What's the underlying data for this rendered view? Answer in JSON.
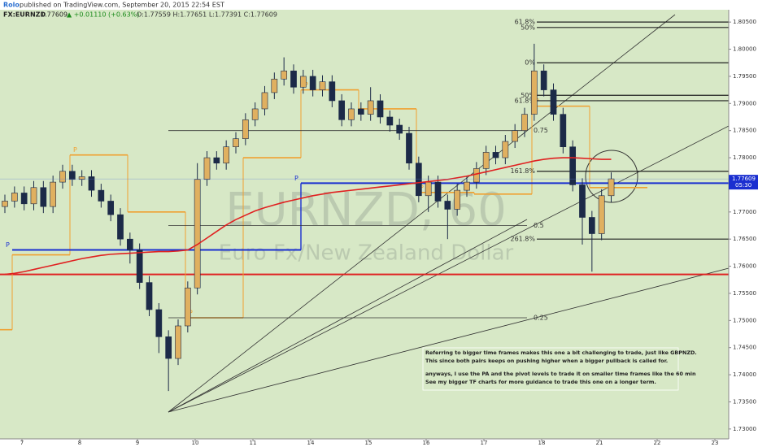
{
  "chart_data": {
    "type": "candlestick",
    "publisher": "Rolo",
    "published": "published on TradingView.com, September 20, 2015 22:54 EST",
    "symbol": "FX:EURNZD",
    "last": "1.77609",
    "change": "▲ +0.01110 (+0.63%)",
    "ohlc": "O:1.77559 H:1.77651 L:1.77391 C:1.77609",
    "watermark": "EURNZD, 60",
    "watermark_subtitle": "Euro Fx/New Zealand Dollar",
    "categories": [
      "7",
      "8",
      "9",
      "10",
      "11",
      "14",
      "15",
      "16",
      "17",
      "18",
      "21",
      "22",
      "23"
    ],
    "up_color": "#e0b060",
    "down_color": "#1c2a48",
    "open": [
      1.771,
      1.772,
      1.7735,
      1.7715,
      1.7745,
      1.771,
      1.7755,
      1.7775,
      1.776,
      1.7765,
      1.774,
      1.772,
      1.7695,
      1.765,
      1.763,
      1.757,
      1.752,
      1.747,
      1.743,
      1.749,
      1.756,
      1.776,
      1.78,
      1.779,
      1.782,
      1.7835,
      1.787,
      1.789,
      1.792,
      1.7945,
      1.796,
      1.793,
      1.795,
      1.7925,
      1.794,
      1.7905,
      1.787,
      1.789,
      1.788,
      1.7905,
      1.7875,
      1.786,
      1.7845,
      1.779,
      1.773,
      1.7755,
      1.772,
      1.7705,
      1.774,
      1.7755,
      1.778,
      1.781,
      1.78,
      1.783,
      1.785,
      1.788,
      1.796,
      1.7925,
      1.788,
      1.782,
      1.775,
      1.769,
      1.766,
      1.773
    ],
    "high": [
      1.7732,
      1.7747,
      1.7747,
      1.7757,
      1.7757,
      1.7767,
      1.7787,
      1.7787,
      1.7777,
      1.7777,
      1.7752,
      1.7732,
      1.7707,
      1.7662,
      1.7642,
      1.7582,
      1.7532,
      1.7482,
      1.7502,
      1.7572,
      1.779,
      1.7812,
      1.7812,
      1.7832,
      1.7847,
      1.7882,
      1.7902,
      1.7932,
      1.7957,
      1.7985,
      1.7972,
      1.7962,
      1.7962,
      1.7952,
      1.7952,
      1.7917,
      1.7902,
      1.7902,
      1.793,
      1.7917,
      1.7887,
      1.7872,
      1.7857,
      1.7802,
      1.7767,
      1.7767,
      1.7732,
      1.7752,
      1.7767,
      1.7792,
      1.7822,
      1.7822,
      1.7842,
      1.7862,
      1.7892,
      1.801,
      1.7972,
      1.7937,
      1.7892,
      1.7832,
      1.7762,
      1.7702,
      1.7742,
      1.7773
    ],
    "low": [
      1.7698,
      1.7708,
      1.7703,
      1.7703,
      1.7698,
      1.7698,
      1.7743,
      1.7748,
      1.7748,
      1.7728,
      1.7708,
      1.7683,
      1.7638,
      1.7605,
      1.7558,
      1.7508,
      1.744,
      1.737,
      1.7418,
      1.7478,
      1.7548,
      1.7748,
      1.7778,
      1.7778,
      1.7808,
      1.7823,
      1.7858,
      1.7878,
      1.7908,
      1.7933,
      1.7918,
      1.7918,
      1.7913,
      1.7913,
      1.7893,
      1.7858,
      1.7858,
      1.7868,
      1.7868,
      1.7863,
      1.7848,
      1.7833,
      1.7778,
      1.7718,
      1.77,
      1.7708,
      1.765,
      1.7693,
      1.7728,
      1.7743,
      1.7768,
      1.7788,
      1.7788,
      1.7818,
      1.7838,
      1.7868,
      1.7913,
      1.7868,
      1.7808,
      1.7738,
      1.764,
      1.759,
      1.7648,
      1.7718
    ],
    "close": [
      1.772,
      1.7735,
      1.7715,
      1.7745,
      1.771,
      1.7755,
      1.7775,
      1.776,
      1.7765,
      1.774,
      1.772,
      1.7695,
      1.765,
      1.763,
      1.757,
      1.752,
      1.747,
      1.743,
      1.749,
      1.756,
      1.776,
      1.78,
      1.779,
      1.782,
      1.7835,
      1.787,
      1.789,
      1.792,
      1.7945,
      1.796,
      1.793,
      1.795,
      1.7925,
      1.794,
      1.7905,
      1.787,
      1.789,
      1.788,
      1.7905,
      1.7875,
      1.786,
      1.7845,
      1.779,
      1.773,
      1.7755,
      1.772,
      1.7705,
      1.774,
      1.7755,
      1.778,
      1.781,
      1.78,
      1.783,
      1.785,
      1.788,
      1.796,
      1.7925,
      1.788,
      1.782,
      1.775,
      1.769,
      1.766,
      1.773,
      1.7761
    ],
    "ma": {
      "color": "#e02020",
      "values": [
        1.7585,
        1.7587,
        1.759,
        1.7594,
        1.7598,
        1.7602,
        1.7606,
        1.761,
        1.7614,
        1.7617,
        1.762,
        1.7622,
        1.7623,
        1.7624,
        1.7625,
        1.7626,
        1.7627,
        1.7627,
        1.7628,
        1.763,
        1.764,
        1.7652,
        1.7664,
        1.7676,
        1.7686,
        1.7694,
        1.7702,
        1.7708,
        1.7713,
        1.7718,
        1.7722,
        1.7726,
        1.773,
        1.7733,
        1.7736,
        1.7738,
        1.774,
        1.7742,
        1.7744,
        1.7746,
        1.7748,
        1.775,
        1.7752,
        1.7754,
        1.7756,
        1.7758,
        1.776,
        1.7763,
        1.7766,
        1.777,
        1.7774,
        1.7778,
        1.7782,
        1.7786,
        1.779,
        1.7794,
        1.7797,
        1.7799,
        1.78,
        1.78,
        1.7799,
        1.7798,
        1.7797,
        1.7797
      ]
    },
    "pivots": {
      "color": "#f0a030",
      "values": [
        1.7483,
        1.7621,
        1.7805,
        1.77,
        1.7505,
        1.78,
        1.7925,
        1.789,
        1.7736,
        1.7733,
        1.7895,
        1.7745
      ]
    },
    "weekly_pivots": {
      "color": "#1a2fd0",
      "values": [
        1.763,
        1.7753
      ]
    },
    "pivot_label": "P",
    "support": {
      "value": 1.7585,
      "color": "#e02020"
    },
    "fib_levels": [
      {
        "label": "61.8%",
        "value": 1.805
      },
      {
        "label": "50%",
        "value": 1.804
      },
      {
        "label": "0%",
        "value": 1.7975
      },
      {
        "label": "50%",
        "value": 1.7915
      },
      {
        "label": "61.8%",
        "value": 1.7905
      },
      {
        "label": "161.8%",
        "value": 1.7775
      },
      {
        "label": "261.8%",
        "value": 1.765
      }
    ],
    "fib_levels_2": [
      {
        "label": "0.75",
        "value": 1.785
      },
      {
        "label": "0.5",
        "value": 1.7675
      },
      {
        "label": "0.25",
        "value": 1.7505
      }
    ],
    "annotation": [
      "Referring to bigger time frames makes this one a bit challenging to trade, just like GBPNZD.",
      "This since both pairs keeps on pushing higher when a bigger pullback is called for.",
      "anyways, I use the PA and the pivot levels to trade it on smaller time frames like the 60 min",
      "See my bigger TF charts for more guidance to trade this one on a longer term."
    ],
    "ylim": [
      1.72818,
      1.80727
    ],
    "yticks": [
      {
        "value": 1.805,
        "label": "1.80500"
      },
      {
        "value": 1.8,
        "label": "1.80000"
      },
      {
        "value": 1.795,
        "label": "1.79500"
      },
      {
        "value": 1.79,
        "label": "1.79000"
      },
      {
        "value": 1.785,
        "label": "1.78500"
      },
      {
        "value": 1.78,
        "label": "1.78000"
      },
      {
        "value": 1.775,
        "label": "1.77500"
      },
      {
        "value": 1.77,
        "label": "1.77000"
      },
      {
        "value": 1.765,
        "label": "1.76500"
      },
      {
        "value": 1.76,
        "label": "1.76000"
      },
      {
        "value": 1.755,
        "label": "1.75500"
      },
      {
        "value": 1.75,
        "label": "1.75000"
      },
      {
        "value": 1.745,
        "label": "1.74500"
      },
      {
        "value": 1.74,
        "label": "1.74000"
      },
      {
        "value": 1.735,
        "label": "1.73500"
      },
      {
        "value": 1.73,
        "label": "1.73000"
      }
    ],
    "last_price": {
      "value": 1.77609,
      "label": "1.77609"
    },
    "countdown": "05:30"
  }
}
